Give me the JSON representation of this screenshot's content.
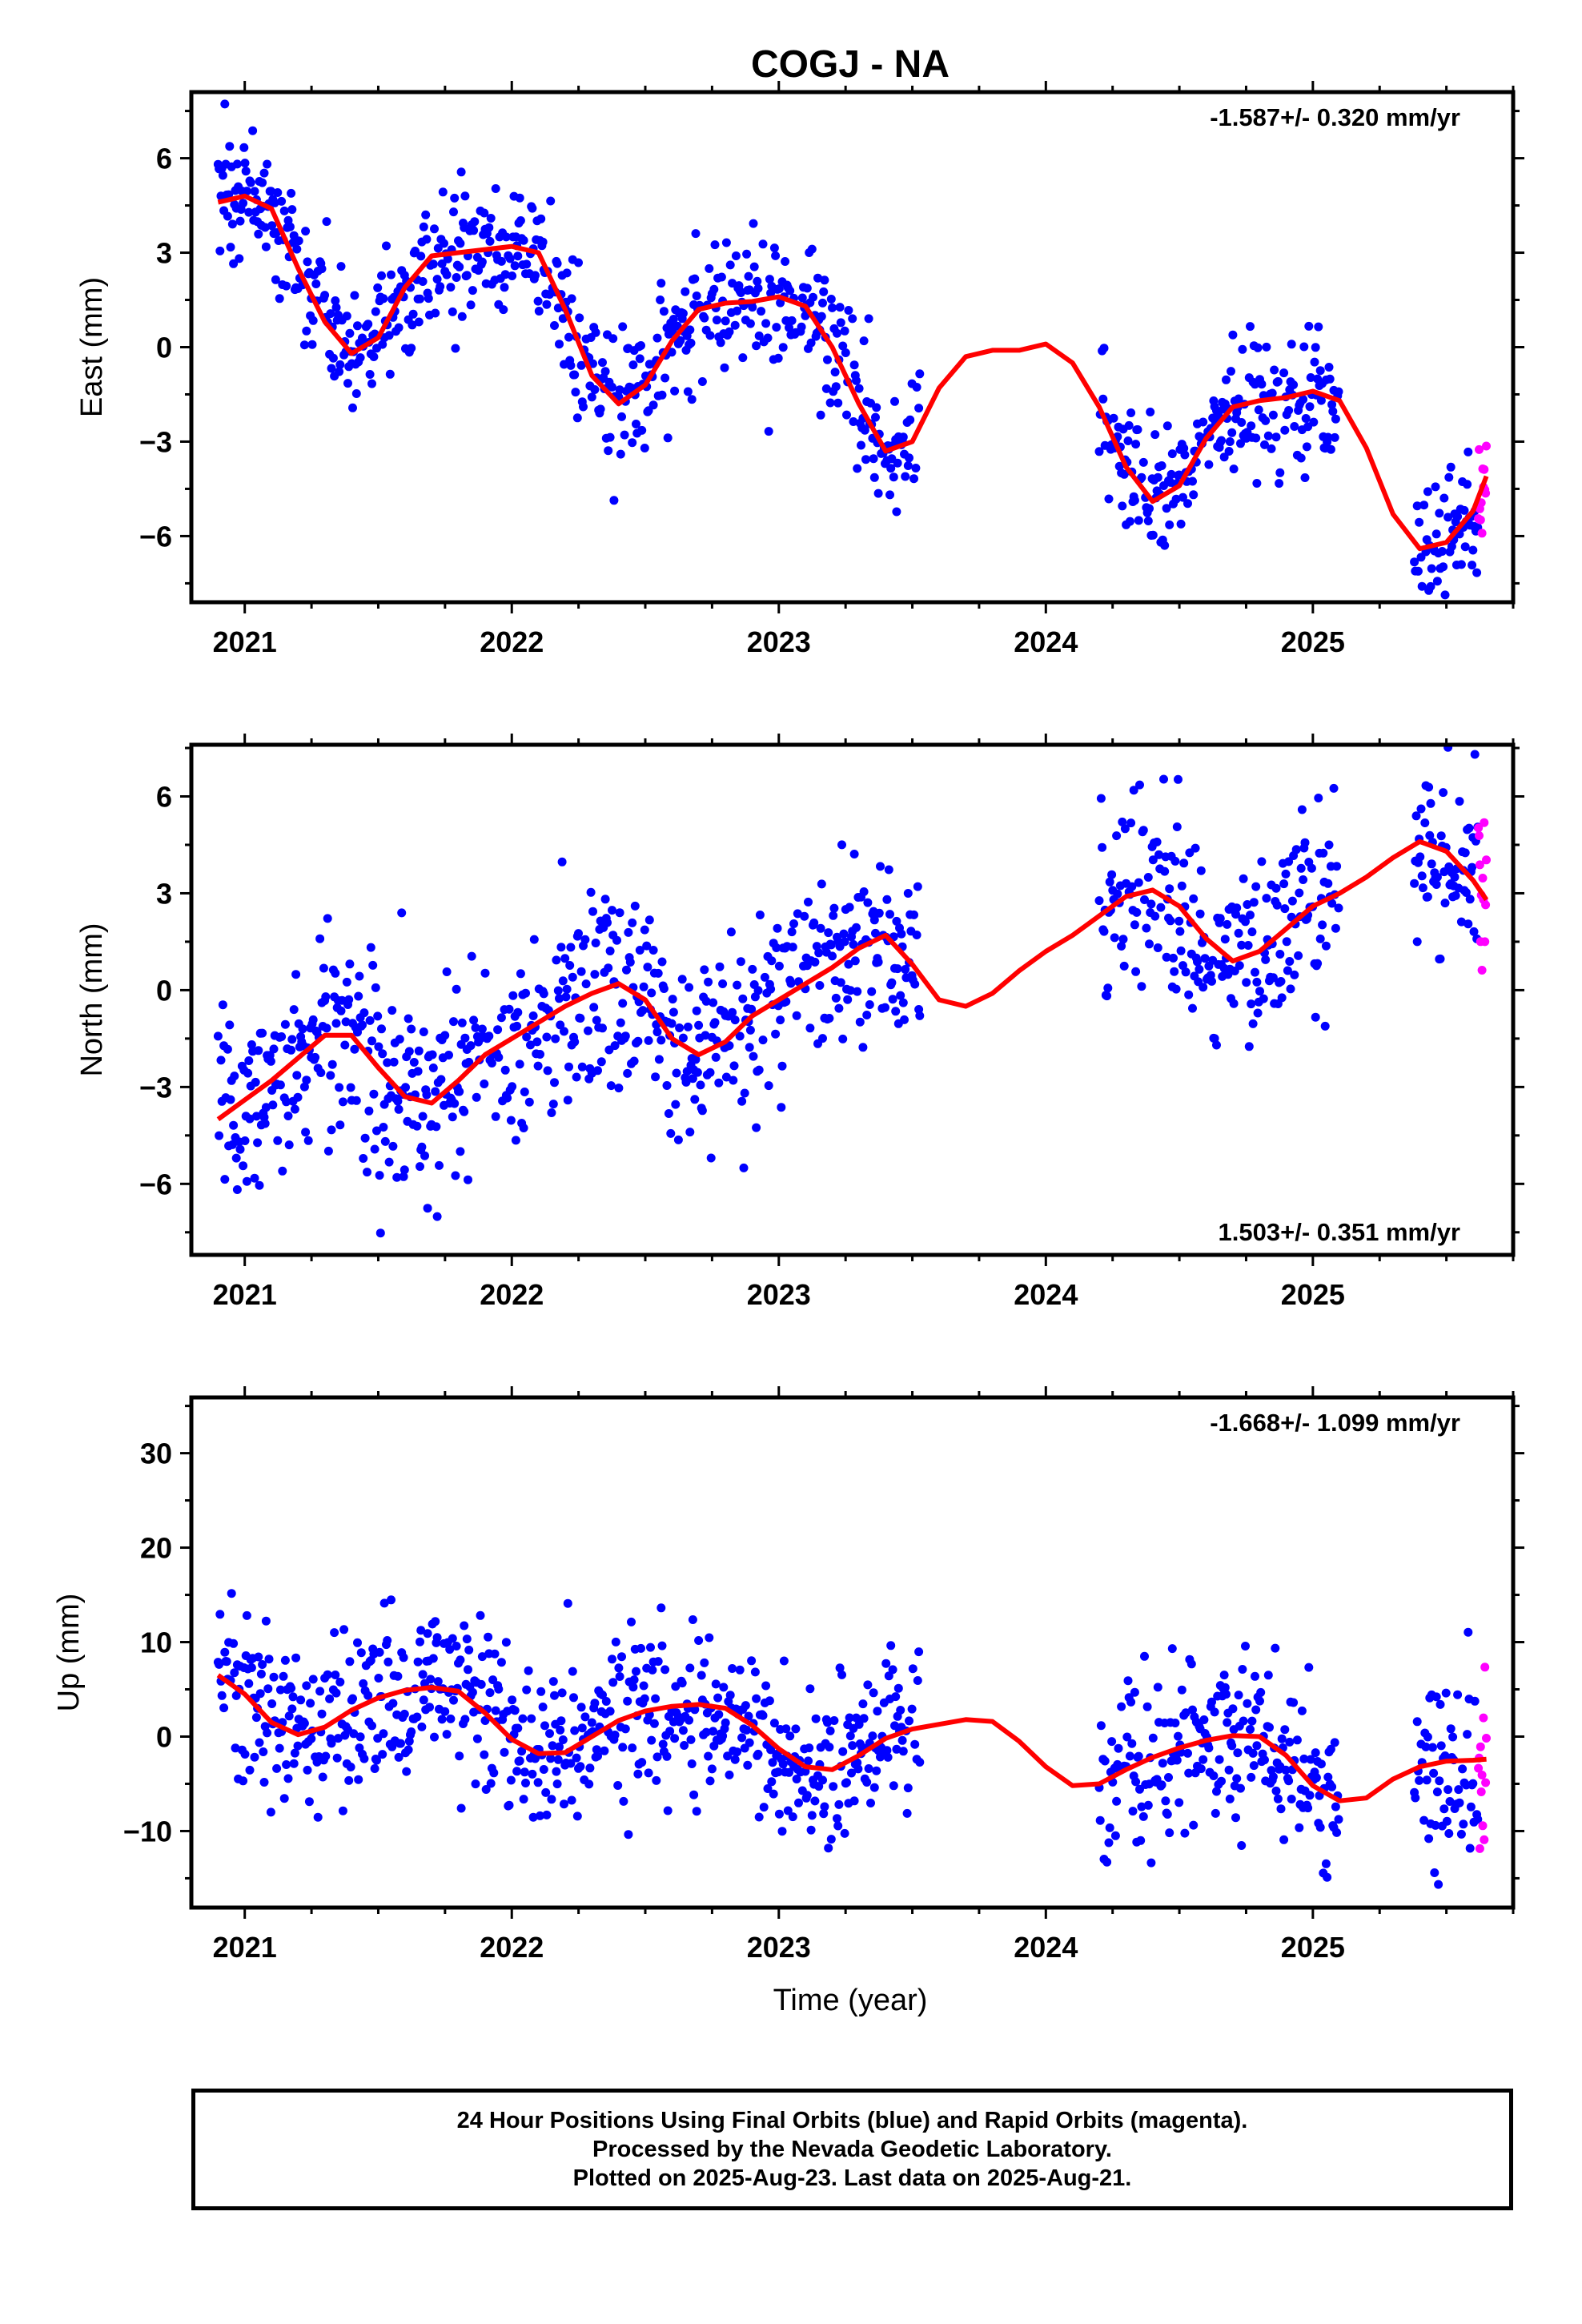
{
  "title": "COGJ - NA",
  "xlabel": "Time (year)",
  "colors": {
    "final": "#0000ff",
    "rapid": "#ff00ff",
    "model": "#ff0000",
    "axes": "#000000"
  },
  "caption": {
    "line1": "24 Hour Positions Using Final Orbits (blue) and Rapid Orbits (magenta).",
    "line2": "Processed by the Nevada Geodetic Laboratory.",
    "line3": "Plotted on 2025-Aug-23. Last data on 2025-Aug-21."
  },
  "chart_data": [
    {
      "type": "scatter",
      "id": "east",
      "ylabel": "East (mm)",
      "rate": "-1.587+/- 0.320 mm/yr",
      "rate_position": "top-right",
      "xlim": [
        2020.8,
        2025.75
      ],
      "ylim": [
        -8.1,
        8.1
      ],
      "xticks": [
        2021,
        2022,
        2023,
        2024,
        2025
      ],
      "yticks": [
        6,
        3,
        0,
        -3,
        -6
      ],
      "ytick_labels": [
        "6",
        "3",
        "0",
        "−3",
        "−6"
      ],
      "series": [
        {
          "kind": "final",
          "segments": [
            [
              2020.9,
              2021.85
            ],
            [
              2021.85,
              2023.53
            ],
            [
              2024.2,
              2025.1
            ],
            [
              2025.38,
              2025.62
            ]
          ]
        },
        {
          "kind": "rapid",
          "segments": [
            [
              2025.62,
              2025.65
            ]
          ]
        },
        {
          "kind": "model"
        }
      ],
      "model": {
        "x": [
          2020.9,
          2021.0,
          2021.1,
          2021.2,
          2021.3,
          2021.4,
          2021.5,
          2021.6,
          2021.7,
          2021.8,
          2021.9,
          2022.0,
          2022.1,
          2022.2,
          2022.3,
          2022.4,
          2022.5,
          2022.6,
          2022.7,
          2022.8,
          2022.9,
          2023.0,
          2023.1,
          2023.2,
          2023.3,
          2023.4,
          2023.5,
          2023.6,
          2023.7,
          2023.8,
          2023.9,
          2024.0,
          2024.1,
          2024.2,
          2024.3,
          2024.4,
          2024.5,
          2024.6,
          2024.7,
          2024.8,
          2024.9,
          2025.0,
          2025.1,
          2025.2,
          2025.3,
          2025.4,
          2025.5,
          2025.6,
          2025.65
        ],
        "y": [
          4.6,
          4.8,
          4.4,
          2.5,
          0.8,
          -0.2,
          0.3,
          1.9,
          2.9,
          3.0,
          3.1,
          3.2,
          3.0,
          1.2,
          -0.9,
          -1.8,
          -1.2,
          0.2,
          1.2,
          1.4,
          1.45,
          1.6,
          1.3,
          0.0,
          -1.8,
          -3.3,
          -3.0,
          -1.3,
          -0.3,
          -0.1,
          -0.1,
          0.1,
          -0.5,
          -1.9,
          -3.8,
          -4.9,
          -4.4,
          -2.9,
          -1.9,
          -1.7,
          -1.6,
          -1.4,
          -1.7,
          -3.2,
          -5.3,
          -6.4,
          -6.2,
          -5.2,
          -4.1
        ]
      }
    },
    {
      "type": "scatter",
      "id": "north",
      "ylabel": "North (mm)",
      "rate": "1.503+/- 0.351 mm/yr",
      "rate_position": "bottom-right",
      "xlim": [
        2020.8,
        2025.75
      ],
      "ylim": [
        -8.2,
        7.6
      ],
      "xticks": [
        2021,
        2022,
        2023,
        2024,
        2025
      ],
      "yticks": [
        6,
        3,
        0,
        -3,
        -6
      ],
      "ytick_labels": [
        "6",
        "3",
        "0",
        "−3",
        "−6"
      ],
      "series": [
        {
          "kind": "final",
          "segments": [
            [
              2020.9,
              2021.85
            ],
            [
              2021.85,
              2023.53
            ],
            [
              2024.2,
              2025.1
            ],
            [
              2025.38,
              2025.62
            ]
          ]
        },
        {
          "kind": "rapid",
          "segments": [
            [
              2025.62,
              2025.65
            ]
          ]
        },
        {
          "kind": "model"
        }
      ],
      "model": {
        "x": [
          2020.9,
          2021.0,
          2021.1,
          2021.2,
          2021.3,
          2021.4,
          2021.5,
          2021.6,
          2021.7,
          2021.8,
          2021.9,
          2022.0,
          2022.1,
          2022.2,
          2022.3,
          2022.4,
          2022.5,
          2022.6,
          2022.7,
          2022.8,
          2022.9,
          2023.0,
          2023.1,
          2023.2,
          2023.3,
          2023.4,
          2023.5,
          2023.6,
          2023.7,
          2023.8,
          2023.9,
          2024.0,
          2024.1,
          2024.2,
          2024.3,
          2024.4,
          2024.5,
          2024.6,
          2024.7,
          2024.8,
          2024.9,
          2025.0,
          2025.1,
          2025.2,
          2025.3,
          2025.4,
          2025.5,
          2025.6,
          2025.65
        ],
        "y": [
          -4.0,
          -3.4,
          -2.8,
          -2.1,
          -1.4,
          -1.4,
          -2.4,
          -3.3,
          -3.5,
          -2.8,
          -2.0,
          -1.5,
          -1.0,
          -0.5,
          -0.1,
          0.2,
          -0.3,
          -1.5,
          -2.0,
          -1.6,
          -0.8,
          -0.3,
          0.2,
          0.7,
          1.3,
          1.7,
          0.8,
          -0.3,
          -0.5,
          -0.1,
          0.6,
          1.2,
          1.7,
          2.3,
          2.9,
          3.1,
          2.6,
          1.6,
          0.9,
          1.2,
          1.9,
          2.6,
          3.0,
          3.5,
          4.1,
          4.6,
          4.3,
          3.4,
          2.8
        ]
      }
    },
    {
      "type": "scatter",
      "id": "up",
      "ylabel": "Up (mm)",
      "rate": "-1.668+/- 1.099 mm/yr",
      "rate_position": "top-right",
      "xlim": [
        2020.8,
        2025.75
      ],
      "ylim": [
        -18.1,
        35.9
      ],
      "xticks": [
        2021,
        2022,
        2023,
        2024,
        2025
      ],
      "yticks": [
        30,
        20,
        10,
        0,
        -10
      ],
      "ytick_labels": [
        "30",
        "20",
        "10",
        "0",
        "−10"
      ],
      "series": [
        {
          "kind": "final",
          "segments": [
            [
              2020.9,
              2021.85
            ],
            [
              2021.85,
              2023.53
            ],
            [
              2024.2,
              2025.1
            ],
            [
              2025.38,
              2025.62
            ]
          ]
        },
        {
          "kind": "rapid",
          "segments": [
            [
              2025.62,
              2025.65
            ]
          ]
        },
        {
          "kind": "model"
        }
      ],
      "model": {
        "x": [
          2020.9,
          2021.0,
          2021.1,
          2021.2,
          2021.3,
          2021.4,
          2021.5,
          2021.6,
          2021.7,
          2021.8,
          2021.9,
          2022.0,
          2022.1,
          2022.2,
          2022.3,
          2022.4,
          2022.5,
          2022.6,
          2022.7,
          2022.8,
          2022.9,
          2023.0,
          2023.1,
          2023.2,
          2023.3,
          2023.4,
          2023.5,
          2023.6,
          2023.7,
          2023.8,
          2023.9,
          2024.0,
          2024.1,
          2024.2,
          2024.3,
          2024.4,
          2024.5,
          2024.6,
          2024.7,
          2024.8,
          2024.9,
          2025.0,
          2025.1,
          2025.2,
          2025.3,
          2025.4,
          2025.5,
          2025.6,
          2025.65
        ],
        "y": [
          6.5,
          4.5,
          1.5,
          0.2,
          1.0,
          2.8,
          4.1,
          4.9,
          5.2,
          4.8,
          2.5,
          -0.3,
          -1.8,
          -1.7,
          0.0,
          1.7,
          2.7,
          3.2,
          3.4,
          3.0,
          1.2,
          -1.3,
          -3.2,
          -3.5,
          -2.0,
          -0.2,
          0.8,
          1.3,
          1.8,
          1.6,
          -0.5,
          -3.2,
          -5.2,
          -5.0,
          -3.5,
          -2.2,
          -1.2,
          -0.4,
          0.1,
          0.0,
          -2.0,
          -5.2,
          -6.8,
          -6.5,
          -4.5,
          -3.2,
          -2.6,
          -2.5,
          -2.4
        ]
      }
    }
  ]
}
